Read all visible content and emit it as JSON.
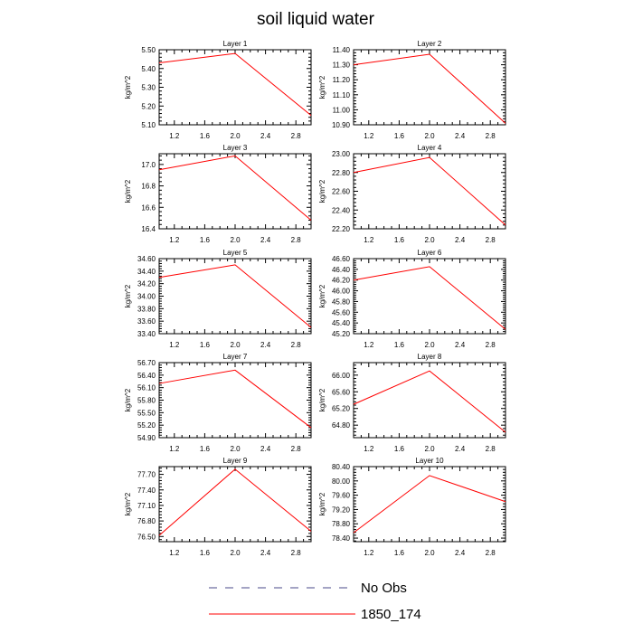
{
  "title": "soil liquid water",
  "legend": [
    {
      "label": "No Obs",
      "style": "dashed",
      "color": "#4a4a8a"
    },
    {
      "label": "1850_174",
      "style": "solid",
      "color": "#ff0000"
    }
  ],
  "chart_data": [
    {
      "type": "line",
      "title": "Layer 1",
      "ylabel": "kg/m^2",
      "xlim": [
        1.0,
        3.0
      ],
      "ylim": [
        5.1,
        5.5
      ],
      "xticks": [
        "1.2",
        "1.6",
        "2.0",
        "2.4",
        "2.8"
      ],
      "yticks": [
        "5.10",
        "5.20",
        "5.30",
        "5.40",
        "5.50"
      ],
      "series": [
        {
          "name": "1850_174",
          "x": [
            1,
            2,
            3
          ],
          "values": [
            5.43,
            5.48,
            5.15
          ]
        }
      ]
    },
    {
      "type": "line",
      "title": "Layer 2",
      "ylabel": "kg/m^2",
      "xlim": [
        1.0,
        3.0
      ],
      "ylim": [
        10.9,
        11.4
      ],
      "xticks": [
        "1.2",
        "1.6",
        "2.0",
        "2.4",
        "2.8"
      ],
      "yticks": [
        "10.90",
        "11.00",
        "11.10",
        "11.20",
        "11.30",
        "11.40"
      ],
      "series": [
        {
          "name": "1850_174",
          "x": [
            1,
            2,
            3
          ],
          "values": [
            11.3,
            11.37,
            10.91
          ]
        }
      ]
    },
    {
      "type": "line",
      "title": "Layer 3",
      "ylabel": "kg/m^2",
      "xlim": [
        1.0,
        3.0
      ],
      "ylim": [
        16.4,
        17.1
      ],
      "xticks": [
        "1.2",
        "1.6",
        "2.0",
        "2.4",
        "2.8"
      ],
      "yticks": [
        "16.4",
        "16.6",
        "16.8",
        "17.0"
      ],
      "series": [
        {
          "name": "1850_174",
          "x": [
            1,
            2,
            3
          ],
          "values": [
            16.95,
            17.08,
            16.48
          ]
        }
      ]
    },
    {
      "type": "line",
      "title": "Layer 4",
      "ylabel": "kg/m^2",
      "xlim": [
        1.0,
        3.0
      ],
      "ylim": [
        22.2,
        23.0
      ],
      "xticks": [
        "1.2",
        "1.6",
        "2.0",
        "2.4",
        "2.8"
      ],
      "yticks": [
        "22.20",
        "22.40",
        "22.60",
        "22.80",
        "23.00"
      ],
      "series": [
        {
          "name": "1850_174",
          "x": [
            1,
            2,
            3
          ],
          "values": [
            22.8,
            22.96,
            22.24
          ]
        }
      ]
    },
    {
      "type": "line",
      "title": "Layer 5",
      "ylabel": "kg/m^2",
      "xlim": [
        1.0,
        3.0
      ],
      "ylim": [
        33.4,
        34.6
      ],
      "xticks": [
        "1.2",
        "1.6",
        "2.0",
        "2.4",
        "2.8"
      ],
      "yticks": [
        "33.40",
        "33.60",
        "33.80",
        "34.00",
        "34.20",
        "34.40",
        "34.60"
      ],
      "series": [
        {
          "name": "1850_174",
          "x": [
            1,
            2,
            3
          ],
          "values": [
            34.3,
            34.5,
            33.5
          ]
        }
      ]
    },
    {
      "type": "line",
      "title": "Layer 6",
      "ylabel": "kg/m^2",
      "xlim": [
        1.0,
        3.0
      ],
      "ylim": [
        45.2,
        46.6
      ],
      "xticks": [
        "1.2",
        "1.6",
        "2.0",
        "2.4",
        "2.8"
      ],
      "yticks": [
        "45.20",
        "45.40",
        "45.60",
        "45.80",
        "46.00",
        "46.20",
        "46.40",
        "46.60"
      ],
      "series": [
        {
          "name": "1850_174",
          "x": [
            1,
            2,
            3
          ],
          "values": [
            46.2,
            46.45,
            45.28
          ]
        }
      ]
    },
    {
      "type": "line",
      "title": "Layer 7",
      "ylabel": "kg/m^2",
      "xlim": [
        1.0,
        3.0
      ],
      "ylim": [
        54.9,
        56.7
      ],
      "xticks": [
        "1.2",
        "1.6",
        "2.0",
        "2.4",
        "2.8"
      ],
      "yticks": [
        "54.90",
        "55.20",
        "55.50",
        "55.80",
        "56.10",
        "56.40",
        "56.70"
      ],
      "series": [
        {
          "name": "1850_174",
          "x": [
            1,
            2,
            3
          ],
          "values": [
            56.2,
            56.52,
            55.14
          ]
        }
      ]
    },
    {
      "type": "line",
      "title": "Layer 8",
      "ylabel": "kg/m^2",
      "xlim": [
        1.0,
        3.0
      ],
      "ylim": [
        64.5,
        66.3
      ],
      "xticks": [
        "1.2",
        "1.6",
        "2.0",
        "2.4",
        "2.8"
      ],
      "yticks": [
        "64.80",
        "65.20",
        "65.60",
        "66.00"
      ],
      "series": [
        {
          "name": "1850_174",
          "x": [
            1,
            2,
            3
          ],
          "values": [
            65.3,
            66.1,
            64.63
          ]
        }
      ]
    },
    {
      "type": "line",
      "title": "Layer 9",
      "ylabel": "kg/m^2",
      "xlim": [
        1.0,
        3.0
      ],
      "ylim": [
        76.4,
        77.85
      ],
      "xticks": [
        "1.2",
        "1.6",
        "2.0",
        "2.4",
        "2.8"
      ],
      "yticks": [
        "76.50",
        "76.80",
        "77.10",
        "77.40",
        "77.70"
      ],
      "series": [
        {
          "name": "1850_174",
          "x": [
            1,
            2,
            3
          ],
          "values": [
            76.52,
            77.8,
            76.6
          ]
        }
      ]
    },
    {
      "type": "line",
      "title": "Layer 10",
      "ylabel": "kg/m^2",
      "xlim": [
        1.0,
        3.0
      ],
      "ylim": [
        78.3,
        80.4
      ],
      "xticks": [
        "1.2",
        "1.6",
        "2.0",
        "2.4",
        "2.8"
      ],
      "yticks": [
        "78.40",
        "78.80",
        "79.20",
        "79.60",
        "80.00",
        "80.40"
      ],
      "series": [
        {
          "name": "1850_174",
          "x": [
            1,
            2,
            3
          ],
          "values": [
            78.55,
            80.15,
            79.42
          ]
        }
      ]
    }
  ]
}
